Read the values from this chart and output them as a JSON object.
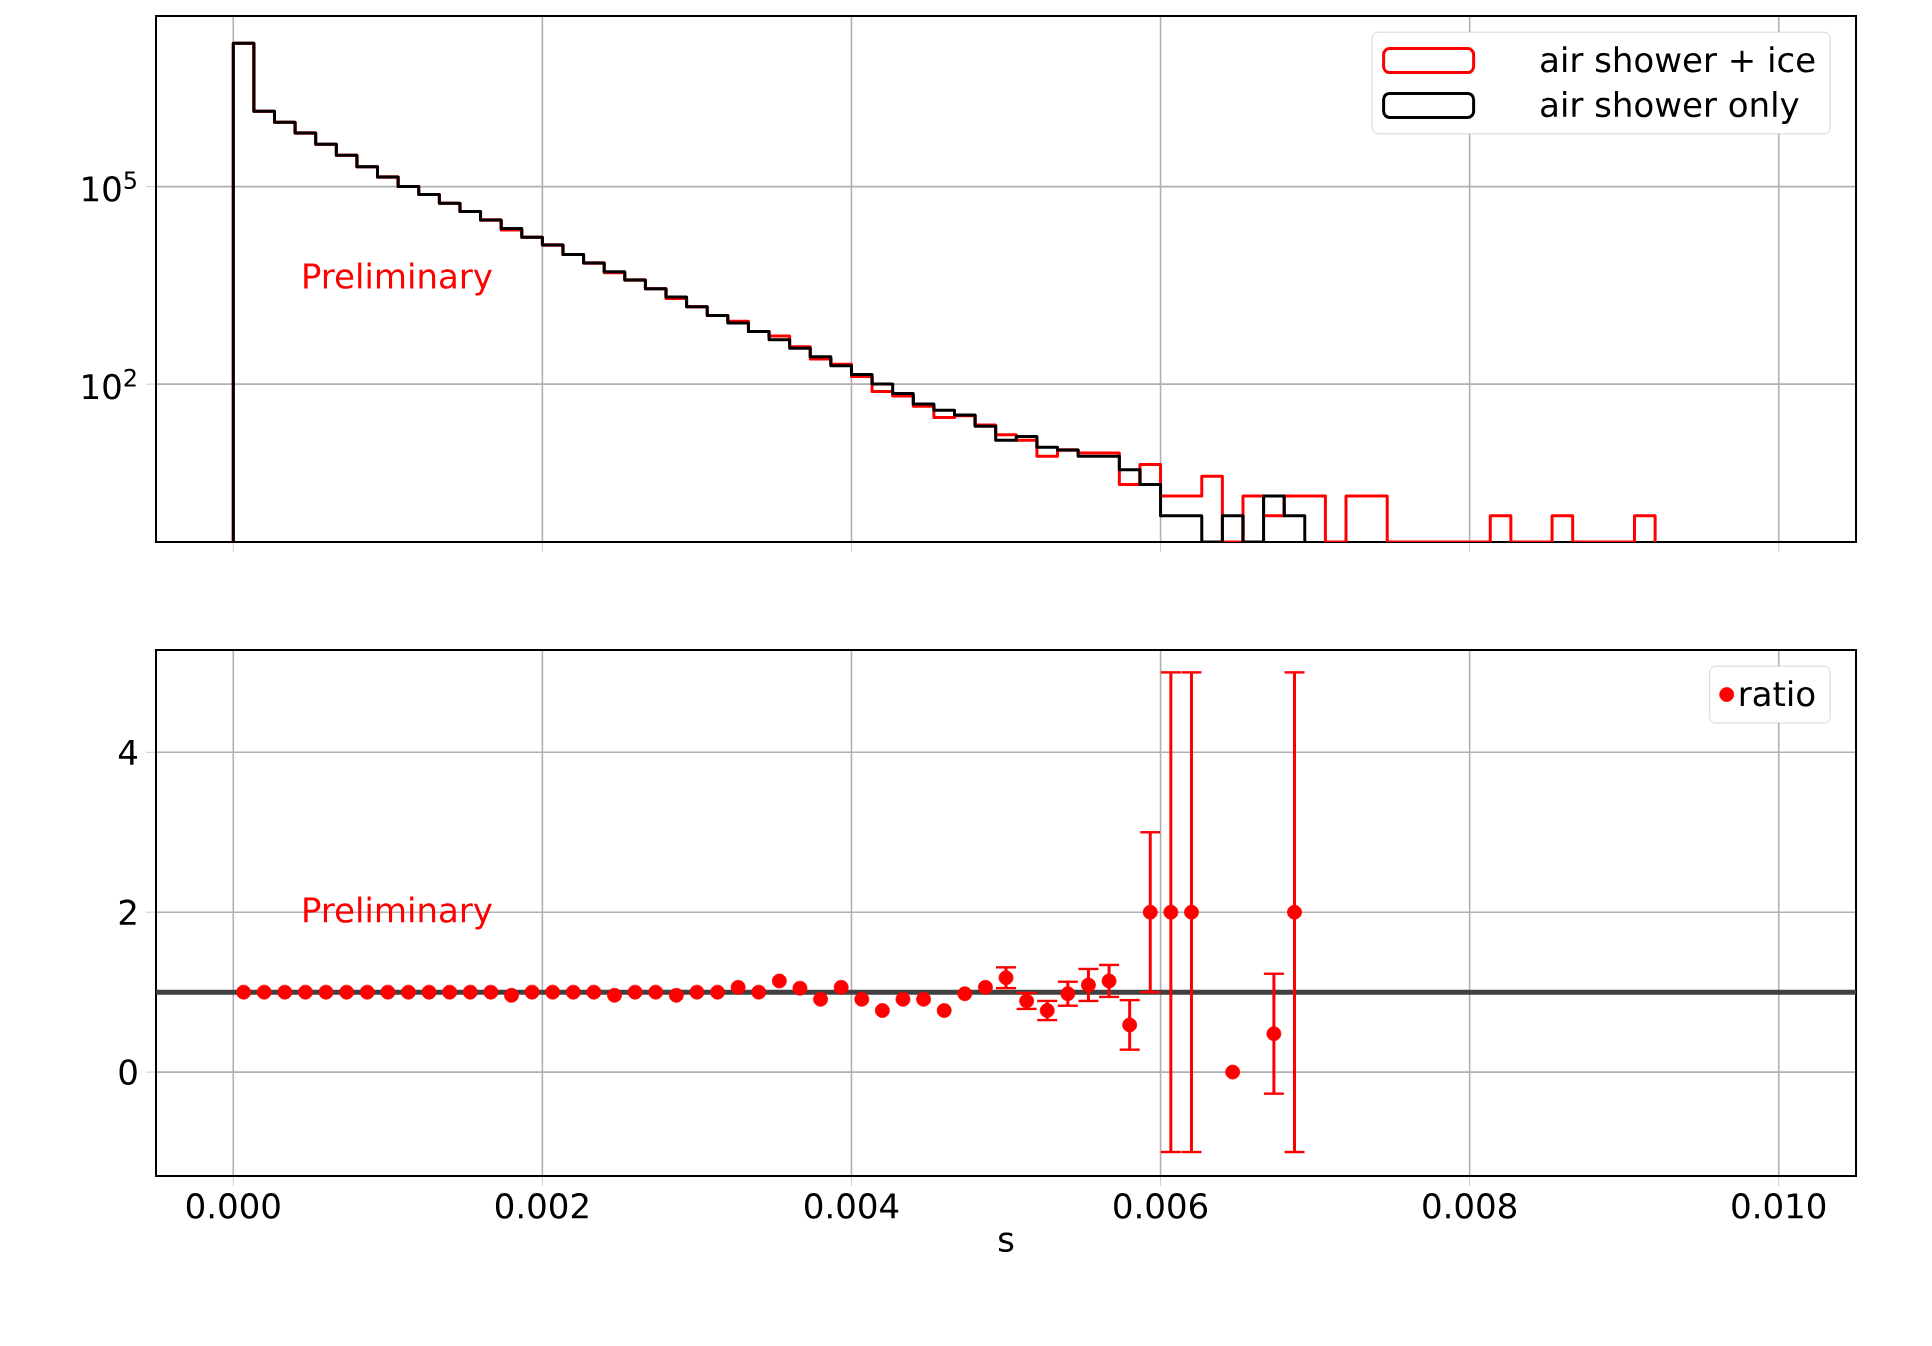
{
  "chart_data": [
    {
      "type": "histogram",
      "bins": [
        0,
        0.0001333,
        0.0002667,
        0.0004,
        0.0005333,
        0.0006667,
        0.0008,
        0.0009333,
        0.0010667,
        0.0012,
        0.0013333,
        0.0014667,
        0.0016,
        0.0017333,
        0.0018667,
        0.002,
        0.0021333,
        0.0022667,
        0.0024,
        0.0025333,
        0.0026667,
        0.0028,
        0.0029333,
        0.0030667,
        0.0032,
        0.0033333,
        0.0034667,
        0.0036,
        0.0037333,
        0.0038667,
        0.004,
        0.0041333,
        0.0042667,
        0.0044,
        0.0045333,
        0.0046667,
        0.0048,
        0.0049333,
        0.0050667,
        0.0052,
        0.0053333,
        0.0054667,
        0.0056,
        0.0057333,
        0.0058667,
        0.006,
        0.0061333,
        0.0062667,
        0.0064,
        0.0065333,
        0.0066667,
        0.0068,
        0.0069333,
        0.0070667,
        0.0072,
        0.0073333,
        0.0074667,
        0.0076,
        0.0077333,
        0.0078667,
        0.008,
        0.0081333,
        0.0082667,
        0.0084,
        0.0085333,
        0.0086667,
        0.0088,
        0.0089333,
        0.0090667,
        0.0092
      ],
      "series": [
        {
          "name": "air shower + ice",
          "color": "#ff0000",
          "values": [
            15000000,
            1400000,
            950000,
            650000,
            440000,
            300000,
            200000,
            140000,
            100000,
            76000,
            56000,
            42000,
            31000,
            22000,
            17000,
            13000,
            9300,
            6900,
            4900,
            3800,
            2800,
            2000,
            1500,
            1100,
            900,
            630,
            540,
            370,
            240,
            200,
            130,
            77,
            66,
            46,
            31,
            33,
            24,
            17,
            14,
            8,
            10,
            9,
            9,
            3,
            6,
            2,
            2,
            4,
            null,
            2,
            1,
            2,
            2,
            null,
            2,
            2,
            null,
            null,
            null,
            null,
            null,
            1,
            null,
            null,
            1,
            null,
            null,
            null,
            1
          ]
        },
        {
          "name": "air shower only",
          "color": "#000000",
          "bins": [
            0,
            0.0001333,
            0.0002667,
            0.0004,
            0.0005333,
            0.0006667,
            0.0008,
            0.0009333,
            0.0010667,
            0.0012,
            0.0013333,
            0.0014667,
            0.0016,
            0.0017333,
            0.0018667,
            0.002,
            0.0021333,
            0.0022667,
            0.0024,
            0.0025333,
            0.0026667,
            0.0028,
            0.0029333,
            0.0030667,
            0.0032,
            0.0033333,
            0.0034667,
            0.0036,
            0.0037333,
            0.0038667,
            0.004,
            0.0041333,
            0.0042667,
            0.0044,
            0.0045333,
            0.0046667,
            0.0048,
            0.0049333,
            0.0050667,
            0.0052,
            0.0053333,
            0.0054667,
            0.0056,
            0.0057333,
            0.0058667,
            0.006,
            0.0061333,
            0.0062667,
            0.0064,
            0.0065333,
            0.0066667,
            0.0068,
            0.0069333
          ],
          "values": [
            15000000,
            1400000,
            950000,
            650000,
            440000,
            300000,
            200000,
            140000,
            100000,
            76000,
            56000,
            42000,
            31000,
            23000,
            17000,
            13000,
            9300,
            6900,
            5100,
            3800,
            2800,
            2100,
            1500,
            1100,
            850,
            630,
            470,
            350,
            260,
            190,
            140,
            100,
            72,
            50,
            40,
            34,
            23,
            14,
            16,
            11,
            10,
            8,
            8,
            5,
            3,
            1,
            1,
            null,
            1,
            null,
            2,
            1
          ]
        }
      ],
      "log": "y",
      "xlim": [
        -0.0005,
        0.0105
      ],
      "ylim": [
        0.4,
        39000000
      ],
      "xticks": [
        0,
        0.002,
        0.004,
        0.006,
        0.008,
        0.01
      ],
      "yticks": [
        {
          "value": 100,
          "label": "10$^{2}$"
        },
        {
          "value": 100000,
          "label": "10$^{5}$"
        }
      ],
      "tick_labels": "y",
      "grid": true,
      "legend": "top right",
      "annotations": [
        "Preliminary"
      ]
    },
    {
      "type": "scatter",
      "x": [
        6.67e-05,
        0.0002,
        0.0003333,
        0.0004667,
        0.0006,
        0.0007333,
        0.0008667,
        0.001,
        0.0011333,
        0.0012667,
        0.0014,
        0.0015333,
        0.0016667,
        0.0018,
        0.0019333,
        0.0020667,
        0.0022,
        0.0023333,
        0.0024667,
        0.0026,
        0.0027333,
        0.0028667,
        0.003,
        0.0031333,
        0.0032667,
        0.0034,
        0.0035333,
        0.0036667,
        0.0038,
        0.0039333,
        0.0040667,
        0.0042,
        0.0043333,
        0.0044667,
        0.0046,
        0.0047333,
        0.0048667,
        0.005,
        0.0051333,
        0.0052667,
        0.0054,
        0.0055333,
        0.0056667,
        0.0058,
        0.0059333,
        0.0060667,
        0.0062,
        0.0063333,
        0.0064667,
        0.0066,
        0.0067333,
        0.0068667
      ],
      "series": [
        {
          "name": "ratio",
          "color": "#ff0000",
          "values": [
            1,
            1,
            1,
            1,
            1,
            1,
            1,
            1,
            1,
            1,
            1,
            1,
            1,
            0.96,
            1,
            1,
            1,
            1,
            0.96,
            1,
            1,
            0.96,
            1,
            1,
            1.06,
            1,
            1.14,
            1.05,
            0.91,
            1.06,
            0.91,
            0.77,
            0.91,
            0.91,
            0.77,
            0.98,
            1.06,
            1.18,
            0.89,
            0.77,
            0.98,
            1.09,
            1.14,
            0.59,
            2,
            2,
            2,
            null,
            0,
            null,
            0.48,
            2
          ],
          "errors": [
            null,
            null,
            null,
            null,
            null,
            null,
            null,
            null,
            null,
            null,
            null,
            null,
            null,
            null,
            null,
            null,
            null,
            null,
            null,
            null,
            null,
            null,
            null,
            null,
            null,
            null,
            null,
            null,
            null,
            null,
            null,
            null,
            null,
            null,
            null,
            null,
            null,
            0.13,
            0.1,
            0.12,
            0.15,
            0.2,
            0.2,
            0.31,
            1,
            3,
            3,
            null,
            null,
            null,
            0.75,
            3
          ]
        }
      ],
      "marker": "circle",
      "xlabel": "s",
      "xlim": [
        -0.0005,
        0.0105
      ],
      "ylim": [
        -1.3,
        5.28
      ],
      "xticks": [
        {
          "value": 0,
          "label": "0.000"
        },
        {
          "value": 0.002,
          "label": "0.002"
        },
        {
          "value": 0.004,
          "label": "0.004"
        },
        {
          "value": 0.006,
          "label": "0.006"
        },
        {
          "value": 0.008,
          "label": "0.008"
        },
        {
          "value": 0.01,
          "label": "0.010"
        }
      ],
      "yticks": [
        0,
        2,
        4
      ],
      "ref_lines": [
        {
          "axis": "y",
          "value": 1,
          "color": "#404040"
        }
      ],
      "grid": true,
      "legend": "top right",
      "annotations": [
        "Preliminary"
      ]
    }
  ]
}
